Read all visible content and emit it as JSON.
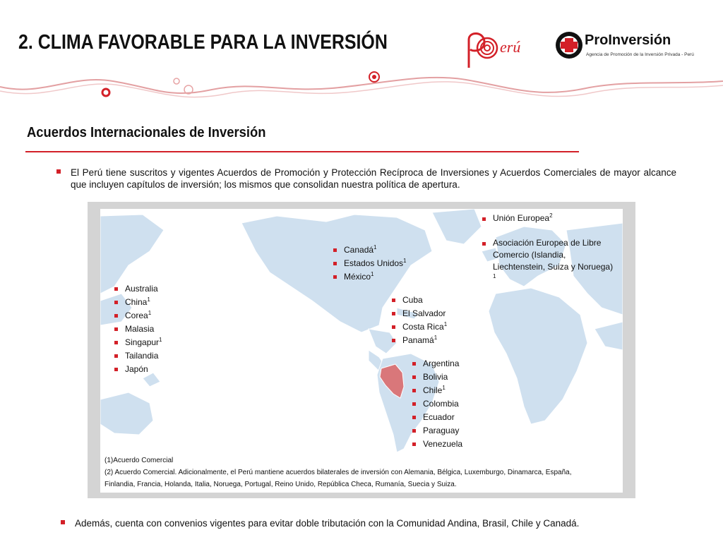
{
  "header": {
    "title": "2.  CLIMA FAVORABLE PARA LA INVERSIÓN",
    "peru_logo_text": "Perú",
    "proinversion_name": "ProInversión",
    "proinversion_tagline": "Agencia de Promoción de la Inversión Privada - Perú"
  },
  "section": {
    "subtitle": "Acuerdos Internacionales de Inversión",
    "intro": "El Perú tiene suscritos y vigentes Acuerdos de Promoción y Protección Recíproca de Inversiones y  Acuerdos Comerciales de mayor alcance que incluyen capítulos de inversión; los mismos que consolidan nuestra política de apertura."
  },
  "map": {
    "asia": [
      {
        "name": "Australia",
        "note": ""
      },
      {
        "name": "China",
        "note": "1"
      },
      {
        "name": "Corea",
        "note": "1"
      },
      {
        "name": "Malasia",
        "note": ""
      },
      {
        "name": "Singapur",
        "note": "1"
      },
      {
        "name": "Tailandia",
        "note": ""
      },
      {
        "name": "Japón",
        "note": ""
      }
    ],
    "north_america": [
      {
        "name": "Canadá",
        "note": "1"
      },
      {
        "name": "Estados Unidos",
        "note": "1"
      },
      {
        "name": "México",
        "note": "1"
      }
    ],
    "central_america": [
      {
        "name": "Cuba",
        "note": ""
      },
      {
        "name": "El Salvador",
        "note": ""
      },
      {
        "name": "Costa Rica",
        "note": "1"
      },
      {
        "name": "Panamá",
        "note": "1"
      }
    ],
    "south_america": [
      {
        "name": "Argentina",
        "note": ""
      },
      {
        "name": "Bolivia",
        "note": ""
      },
      {
        "name": "Chile",
        "note": "1"
      },
      {
        "name": "Colombia",
        "note": ""
      },
      {
        "name": "Ecuador",
        "note": ""
      },
      {
        "name": "Paraguay",
        "note": ""
      },
      {
        "name": "Venezuela",
        "note": ""
      }
    ],
    "europe": {
      "eu": "Unión Europea",
      "eu_note": "2",
      "efta_line1": "Asociación Europea de Libre",
      "efta_line2": "Comercio (Islandia,",
      "efta_line3": "Liechtenstein, Suiza y Noruega)",
      "efta_note": "1"
    },
    "notes": {
      "note1": "(1)Acuerdo Comercial",
      "note2": "(2) Acuerdo Comercial. Adicionalmente,  el Perú mantiene  acuerdos bilaterales de inversión con Alemania, Bélgica, Luxemburgo, Dinamarca, España,",
      "note3": "Finlandia, Francia, Holanda, Italia, Noruega, Portugal,  Reino Unido, República Checa, Rumanía, Suecia y Suiza."
    }
  },
  "closing": "Además, cuenta con convenios vigentes para evitar doble tributación con la Comunidad Andina, Brasil, Chile y Canadá.",
  "colors": {
    "accent": "#d32028",
    "map_land": "#cfe0ef",
    "highlight": "#d9777a"
  }
}
